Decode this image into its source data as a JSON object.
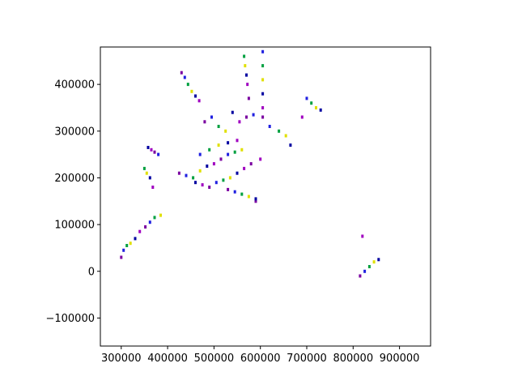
{
  "chart_data": {
    "type": "scatter",
    "title": "",
    "xlabel": "",
    "ylabel": "",
    "xlim": [
      255000,
      967000
    ],
    "ylim": [
      -160000,
      480000
    ],
    "xticks": [
      300000,
      400000,
      500000,
      600000,
      700000,
      800000,
      900000
    ],
    "yticks": [
      -100000,
      0,
      100000,
      200000,
      300000,
      400000
    ],
    "xtick_labels": [
      "300000",
      "400000",
      "500000",
      "600000",
      "700000",
      "800000",
      "900000"
    ],
    "ytick_labels": [
      "−100000",
      "0",
      "100000",
      "200000",
      "300000",
      "400000"
    ],
    "grid": false,
    "legend": "none",
    "colors": [
      "#7a00a0",
      "#2020e0",
      "#00a040",
      "#e0e000",
      "#0000a0",
      "#a000c0"
    ],
    "series": [
      {
        "x": [
          300000,
          305000,
          312000,
          320000,
          330000,
          340000,
          352000,
          362000,
          372000,
          385000,
          358000,
          365000,
          372000,
          380000,
          350000,
          355000,
          362000,
          368000,
          430000,
          437000,
          444000,
          452000,
          460000,
          468000,
          425000,
          440000,
          455000,
          470000,
          485000,
          500000,
          515000,
          530000,
          545000,
          560000,
          460000,
          475000,
          490000,
          505000,
          520000,
          535000,
          550000,
          565000,
          580000,
          470000,
          490000,
          510000,
          530000,
          550000,
          480000,
          495000,
          510000,
          525000,
          540000,
          555000,
          570000,
          585000,
          565000,
          567000,
          570000,
          572000,
          575000,
          605000,
          605000,
          605000,
          605000,
          605000,
          605000,
          620000,
          640000,
          655000,
          665000,
          600000,
          590000,
          700000,
          710000,
          720000,
          730000,
          690000,
          815000,
          825000,
          835000,
          845000,
          855000,
          820000,
          530000,
          545000,
          560000,
          575000,
          590000
        ],
        "y": [
          30000,
          45000,
          55000,
          60000,
          70000,
          85000,
          95000,
          105000,
          115000,
          120000,
          265000,
          260000,
          255000,
          250000,
          220000,
          210000,
          200000,
          180000,
          425000,
          415000,
          400000,
          385000,
          375000,
          365000,
          210000,
          205000,
          200000,
          215000,
          225000,
          230000,
          240000,
          250000,
          255000,
          260000,
          190000,
          185000,
          180000,
          190000,
          195000,
          200000,
          210000,
          220000,
          230000,
          250000,
          260000,
          270000,
          275000,
          280000,
          320000,
          330000,
          310000,
          300000,
          340000,
          320000,
          330000,
          335000,
          460000,
          440000,
          420000,
          400000,
          370000,
          470000,
          440000,
          410000,
          380000,
          350000,
          330000,
          310000,
          300000,
          290000,
          270000,
          240000,
          150000,
          370000,
          360000,
          350000,
          345000,
          330000,
          -10000,
          0,
          10000,
          20000,
          25000,
          75000,
          175000,
          170000,
          165000,
          160000,
          155000
        ]
      }
    ]
  }
}
